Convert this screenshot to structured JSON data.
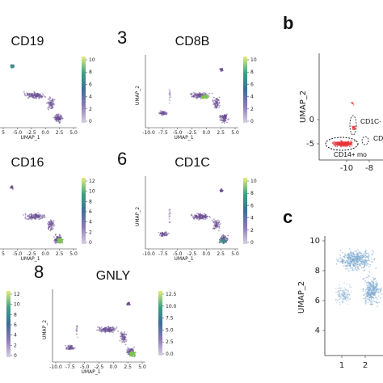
{
  "figure": {
    "panel_labels": [
      "b",
      "c"
    ],
    "panels_a": [
      {
        "title": "CD19",
        "colorbar_ticks": [
          "10",
          "8",
          "6",
          "4",
          "2",
          "0"
        ],
        "x_ticks": [
          "5",
          "-5.0",
          "-2.5",
          "0.0",
          "2.5",
          "5.0"
        ],
        "x_label": "UMAP_1",
        "y_label": ""
      },
      {
        "number": "3",
        "title": "CD8B",
        "colorbar_ticks": [
          "10",
          "8",
          "6",
          "4",
          "2",
          "0"
        ],
        "x_ticks": [
          "-10.0",
          "-7.5",
          "-5.0",
          "-2.5",
          "0.0",
          "2.5",
          "5.0"
        ],
        "x_label": "UMAP_1",
        "y_label": "UMAP_2"
      },
      {
        "title": "CD16",
        "colorbar_ticks": [
          "12",
          "10",
          "8",
          "6",
          "4",
          "2",
          "0"
        ],
        "x_ticks": [
          "5",
          "-5.0",
          "-2.5",
          "0.0",
          "2.5",
          "5.0"
        ],
        "x_label": "UMAP_1",
        "y_label": ""
      },
      {
        "number": "6",
        "title": "CD1C",
        "colorbar_ticks": [
          "10",
          "8",
          "6",
          "4",
          "2",
          "0"
        ],
        "x_ticks": [
          "-10.0",
          "-7.5",
          "-5.0",
          "-2.5",
          "0.0",
          "2.5",
          "5.0"
        ],
        "x_label": "UMAP_1",
        "y_label": "UMAP_2"
      },
      {
        "title": "",
        "colorbar_ticks": [
          "12",
          "10",
          "8",
          "6",
          "4",
          "2",
          "0"
        ],
        "x_ticks": [],
        "x_label": "",
        "y_label": ""
      },
      {
        "number": "8",
        "title": "GNLY",
        "colorbar_ticks": [
          "12.5",
          "10.0",
          "7.5",
          "5.0",
          "2.5",
          "0.0"
        ],
        "x_ticks": [
          "-10.0",
          "-7.5",
          "-5.0",
          "-2.5",
          "0.0",
          "2.5",
          "5.0"
        ],
        "x_label": "UMAP_1",
        "y_label": "UMAP_2"
      }
    ],
    "panel_b": {
      "label": "b",
      "y_label": "UMAP_2",
      "y_ticks": [
        "0",
        "-5"
      ],
      "x_ticks": [
        "-10",
        "-8"
      ],
      "annotations": [
        "CD1C-",
        "CD",
        "CD14+ mo"
      ]
    },
    "panel_c": {
      "label": "c",
      "y_label": "UMAP_2",
      "y_ticks": [
        "10",
        "8",
        "6",
        "4",
        "2"
      ],
      "x_ticks": [
        "1",
        "2"
      ]
    },
    "colors": {
      "umap_purple": "#6b4f93",
      "high_green": "#7ac74f",
      "teal": "#3e8f89",
      "red": "#e8333a",
      "cluster_blue": "#7aa7cf"
    },
    "colormap": "viridis"
  }
}
